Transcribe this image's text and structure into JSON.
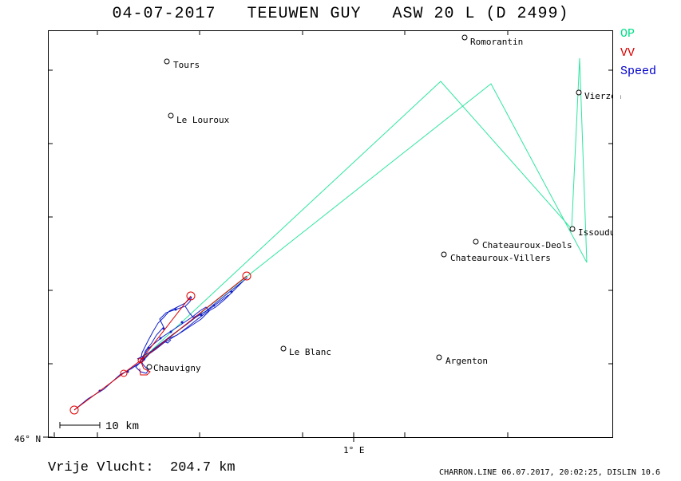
{
  "title": "04-07-2017   TEEUWEN GUY   ASW 20 L (D 2499)",
  "legend": {
    "op": {
      "label": "OP",
      "color": "#00dd88"
    },
    "vv": {
      "label": "VV",
      "color": "#dd0000"
    },
    "speed": {
      "label": "Speed",
      "color": "#0000cc"
    }
  },
  "axis": {
    "lat_label": "46° N",
    "lon_label": "1° E"
  },
  "scale_label": "10 km",
  "towns": [
    {
      "name": "Tours"
    },
    {
      "name": "Le Louroux"
    },
    {
      "name": "Romorantin"
    },
    {
      "name": "Vierzon"
    },
    {
      "name": "Issoudun"
    },
    {
      "name": "Chateauroux-Deols"
    },
    {
      "name": "Chateauroux-Villers"
    },
    {
      "name": "Le Blanc"
    },
    {
      "name": "Argenton"
    },
    {
      "name": "Chauvigny"
    }
  ],
  "free_flight": "Vrije Vlucht:  204.7 km",
  "footer": "CHARRON.LINE 06.07.2017, 20:02:25, DISLIN 10.6"
}
